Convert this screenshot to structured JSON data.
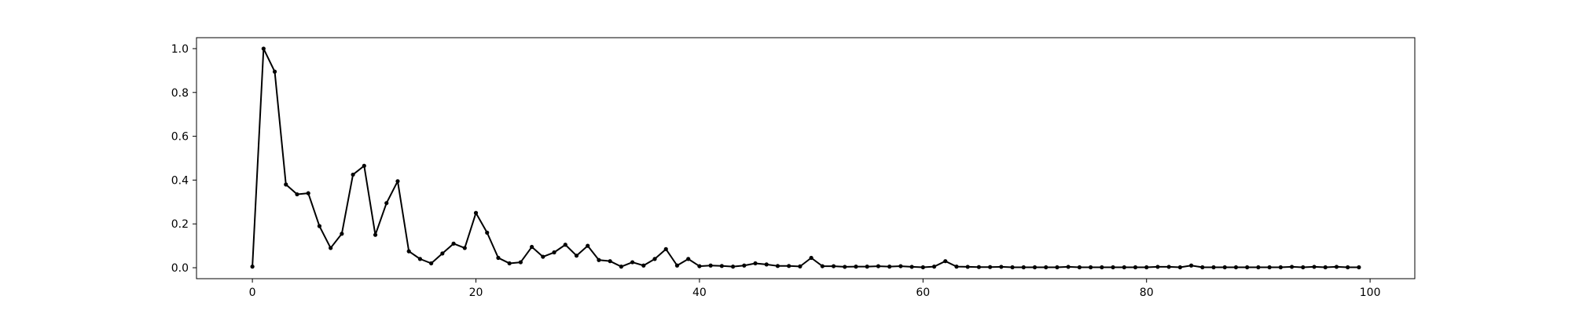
{
  "chart_data": {
    "type": "line",
    "title": "",
    "xlabel": "",
    "ylabel": "",
    "xlim": [
      -5,
      104
    ],
    "ylim": [
      -0.05,
      1.05
    ],
    "grid": false,
    "legend": "none",
    "color": "#000000",
    "xticks": [
      0,
      20,
      40,
      60,
      80,
      100
    ],
    "xtick_labels": [
      "0",
      "20",
      "40",
      "60",
      "80",
      "100"
    ],
    "yticks": [
      0.0,
      0.2,
      0.4,
      0.6,
      0.8,
      1.0
    ],
    "ytick_labels": [
      "0.0",
      "0.2",
      "0.4",
      "0.6",
      "0.8",
      "1.0"
    ],
    "series": [
      {
        "marker": "circle",
        "x": [
          0,
          1,
          2,
          3,
          4,
          5,
          6,
          7,
          8,
          9,
          10,
          11,
          12,
          13,
          14,
          15,
          16,
          17,
          18,
          19,
          20,
          21,
          22,
          23,
          24,
          25,
          26,
          27,
          28,
          29,
          30,
          31,
          32,
          33,
          34,
          35,
          36,
          37,
          38,
          39,
          40,
          41,
          42,
          43,
          44,
          45,
          46,
          47,
          48,
          49,
          50,
          51,
          52,
          53,
          54,
          55,
          56,
          57,
          58,
          59,
          60,
          61,
          62,
          63,
          64,
          65,
          66,
          67,
          68,
          69,
          70,
          71,
          72,
          73,
          74,
          75,
          76,
          77,
          78,
          79,
          80,
          81,
          82,
          83,
          84,
          85,
          86,
          87,
          88,
          89,
          90,
          91,
          92,
          93,
          94,
          95,
          96,
          97,
          98,
          99
        ],
        "y": [
          0.005,
          1.0,
          0.895,
          0.38,
          0.335,
          0.34,
          0.19,
          0.09,
          0.155,
          0.425,
          0.465,
          0.15,
          0.295,
          0.395,
          0.075,
          0.04,
          0.02,
          0.065,
          0.11,
          0.09,
          0.25,
          0.16,
          0.045,
          0.02,
          0.025,
          0.095,
          0.05,
          0.07,
          0.105,
          0.055,
          0.1,
          0.035,
          0.03,
          0.005,
          0.025,
          0.01,
          0.04,
          0.085,
          0.01,
          0.04,
          0.007,
          0.01,
          0.008,
          0.005,
          0.01,
          0.02,
          0.015,
          0.008,
          0.008,
          0.006,
          0.045,
          0.007,
          0.007,
          0.004,
          0.005,
          0.005,
          0.007,
          0.005,
          0.007,
          0.004,
          0.002,
          0.005,
          0.03,
          0.005,
          0.004,
          0.003,
          0.003,
          0.004,
          0.002,
          0.002,
          0.002,
          0.002,
          0.002,
          0.004,
          0.002,
          0.002,
          0.002,
          0.002,
          0.002,
          0.002,
          0.002,
          0.004,
          0.004,
          0.002,
          0.01,
          0.002,
          0.002,
          0.002,
          0.002,
          0.002,
          0.002,
          0.002,
          0.002,
          0.004,
          0.002,
          0.004,
          0.002,
          0.004,
          0.002,
          0.002
        ]
      }
    ]
  }
}
